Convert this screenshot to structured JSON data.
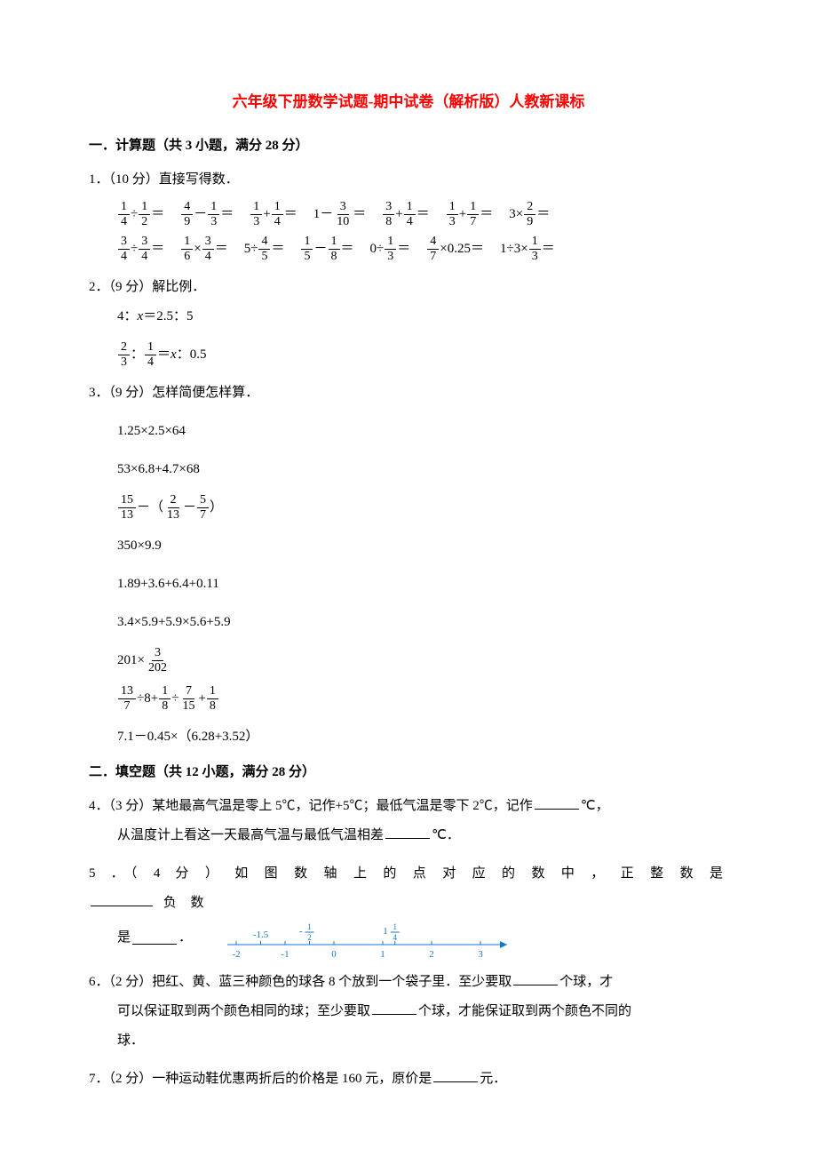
{
  "title": "六年级下册数学试题-期中试卷（解析版）人教新课标",
  "section1": {
    "heading": "一．计算题（共 3 小题，满分 28 分）",
    "q1": {
      "prefix": "1．（10 分）直接写得数．",
      "row1": [
        {
          "a": {
            "n": "1",
            "d": "4"
          },
          "op": "÷",
          "b": {
            "n": "1",
            "d": "2"
          }
        },
        {
          "a": {
            "n": "4",
            "d": "9"
          },
          "op": "－",
          "b": {
            "n": "1",
            "d": "3"
          }
        },
        {
          "a": {
            "n": "1",
            "d": "3"
          },
          "op": "+",
          "b": {
            "n": "1",
            "d": "4"
          }
        },
        {
          "pre": "1",
          "op": "－",
          "b": {
            "n": "3",
            "d": "10"
          }
        },
        {
          "a": {
            "n": "3",
            "d": "8"
          },
          "op": "+",
          "b": {
            "n": "1",
            "d": "4"
          }
        },
        {
          "a": {
            "n": "1",
            "d": "3"
          },
          "op": "+",
          "b": {
            "n": "1",
            "d": "7"
          }
        },
        {
          "pre": "3",
          "op": "×",
          "b": {
            "n": "2",
            "d": "9"
          }
        }
      ],
      "row2": [
        {
          "a": {
            "n": "3",
            "d": "4"
          },
          "op": "÷",
          "b": {
            "n": "3",
            "d": "4"
          }
        },
        {
          "a": {
            "n": "1",
            "d": "6"
          },
          "op": "×",
          "b": {
            "n": "3",
            "d": "4"
          }
        },
        {
          "pre": "5",
          "op": "÷",
          "b": {
            "n": "4",
            "d": "5"
          }
        },
        {
          "a": {
            "n": "1",
            "d": "5"
          },
          "op": "－",
          "b": {
            "n": "1",
            "d": "8"
          }
        },
        {
          "pre": "0",
          "op": "÷",
          "b": {
            "n": "1",
            "d": "3"
          }
        },
        {
          "a": {
            "n": "4",
            "d": "7"
          },
          "op": "×",
          "post": "0.25"
        },
        {
          "pre": "1÷3",
          "op": "×",
          "b": {
            "n": "1",
            "d": "3"
          }
        }
      ]
    },
    "q2": {
      "prefix": "2．（9 分）解比例．",
      "line1_pre": "4：",
      "line1_x": "x",
      "line1_post": "＝2.5：5",
      "line2_a": {
        "n": "2",
        "d": "3"
      },
      "line2_mid": "：",
      "line2_b": {
        "n": "1",
        "d": "4"
      },
      "line2_eq": "＝",
      "line2_x": "x",
      "line2_post": "：0.5"
    },
    "q3": {
      "prefix": "3．（9 分）怎样简便怎样算．",
      "e1": "1.25×2.5×64",
      "e2": "53×6.8+4.7×68",
      "e3_a": {
        "n": "15",
        "d": "13"
      },
      "e3_b": {
        "n": "2",
        "d": "13"
      },
      "e3_c": {
        "n": "5",
        "d": "7"
      },
      "e4": "350×9.9",
      "e5": "1.89+3.6+6.4+0.11",
      "e6": "3.4×5.9+5.9×5.6+5.9",
      "e7_pre": "201×",
      "e7_f": {
        "n": "3",
        "d": "202"
      },
      "e8_a": {
        "n": "13",
        "d": "7"
      },
      "e8_mid1": "÷8+",
      "e8_b": {
        "n": "1",
        "d": "8"
      },
      "e8_mid2": "÷",
      "e8_c": {
        "n": "7",
        "d": "15"
      },
      "e8_mid3": "+",
      "e8_d": {
        "n": "1",
        "d": "8"
      },
      "e9": "7.1－0.45×（6.28+3.52）"
    }
  },
  "section2": {
    "heading": "二．填空题（共 12 小题，满分 28 分）",
    "q4_a": "4．（3 分）某地最高气温是零上 5℃，记作+5℃；最低气温是零下 2℃，记作",
    "q4_b": "℃，",
    "q4_c": "从温度计上看这一天最高气温与最低气温相差",
    "q4_d": "℃．",
    "q5_a": "5 ．（ 4 分 ） 如 图 数 轴 上 的 点 对 应 的 数 中 ， 正 整 数 是 ",
    "q5_b": " 负 数",
    "q5_c": "是",
    "q5_d": "．",
    "nl": {
      "labels_top": [
        "-1.5",
        "",
        "",
        ""
      ],
      "top_f1": {
        "pre": "-",
        "n": "1",
        "d": "2"
      },
      "top_f2": {
        "pre": "1",
        "n": "1",
        "d": "4"
      },
      "labels_bot": [
        "-2",
        "-1",
        "0",
        "1",
        "2",
        "3"
      ],
      "color": "#1177cc"
    },
    "q6_a": "6．（2 分）把红、黄、蓝三种颜色的球各 8 个放到一个袋子里．至少要取",
    "q6_b": "个球，才",
    "q6_c": "可以保证取到两个颜色相同的球；至少要取",
    "q6_d": "个球，才能保证取到两个颜色不同的",
    "q6_e": "球．",
    "q7_a": "7．（2 分）一种运动鞋优惠两折后的价格是 160 元，原价是",
    "q7_b": "元．"
  }
}
